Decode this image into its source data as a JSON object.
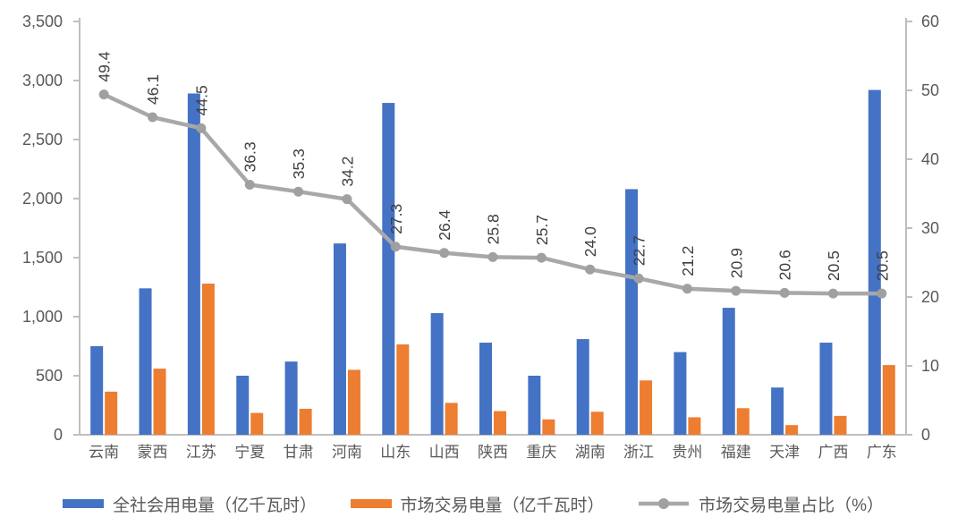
{
  "chart_data": {
    "type": "bar",
    "subtype": "combo-bar-line-dual-axis",
    "title": "",
    "categories": [
      "云南",
      "蒙西",
      "江苏",
      "宁夏",
      "甘肃",
      "河南",
      "山东",
      "山西",
      "陕西",
      "重庆",
      "湖南",
      "浙江",
      "贵州",
      "福建",
      "天津",
      "广西",
      "广东"
    ],
    "series": [
      {
        "name": "全社会用电量（亿千瓦时）",
        "type": "bar",
        "axis": "left",
        "color": "#4472C4",
        "values": [
          750,
          1240,
          2890,
          500,
          620,
          1620,
          2810,
          1030,
          780,
          500,
          810,
          2080,
          700,
          1075,
          400,
          780,
          2920
        ]
      },
      {
        "name": "市场交易电量（亿千瓦时）",
        "type": "bar",
        "axis": "left",
        "color": "#ED7D31",
        "values": [
          365,
          560,
          1280,
          185,
          220,
          550,
          765,
          270,
          200,
          130,
          195,
          460,
          148,
          225,
          82,
          160,
          590
        ]
      },
      {
        "name": "市场交易电量占比（%）",
        "type": "line",
        "axis": "right",
        "color": "#A8A8A8",
        "marker_color": "#A0A0A0",
        "values": [
          49.4,
          46.1,
          44.5,
          36.3,
          35.3,
          34.2,
          27.3,
          26.4,
          25.8,
          25.7,
          24.0,
          22.7,
          21.2,
          20.9,
          20.6,
          20.5,
          20.5
        ],
        "data_labels": [
          "49.4",
          "46.1",
          "44.5",
          "36.3",
          "35.3",
          "34.2",
          "27.3",
          "26.4",
          "25.8",
          "25.7",
          "24.0",
          "22.7",
          "21.2",
          "20.9",
          "20.6",
          "20.5",
          "20.5"
        ],
        "data_labels_rotated": true
      }
    ],
    "left_axis": {
      "min": 0,
      "max": 3500,
      "step": 500,
      "tick_labels": [
        "0",
        "500",
        "1,000",
        "1,500",
        "2,000",
        "2,500",
        "3,000",
        "3,500"
      ]
    },
    "right_axis": {
      "min": 0,
      "max": 60,
      "step": 10,
      "tick_labels": [
        "0",
        "10",
        "20",
        "30",
        "40",
        "50",
        "60"
      ]
    },
    "grid": false,
    "legend_position": "bottom",
    "axis_text_color": "#595959",
    "data_label_color": "#3F3F3F",
    "axis_line_color": "#BFBFBF"
  },
  "legend": {
    "items": [
      {
        "label": "全社会用电量（亿千瓦时）",
        "color": "#4472C4",
        "marker": "rect"
      },
      {
        "label": "市场交易电量（亿千瓦时）",
        "color": "#ED7D31",
        "marker": "rect"
      },
      {
        "label": "市场交易电量占比（%）",
        "color": "#A8A8A8",
        "marker": "line-dot"
      }
    ]
  }
}
